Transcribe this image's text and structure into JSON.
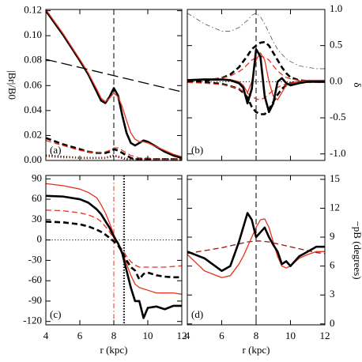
{
  "chart_data": [
    {
      "type": "line",
      "panel_label": "(a)",
      "ylabel": "|Br|/B0",
      "yaxis_side": "left",
      "xtick_labels": false,
      "xlim": [
        4,
        12
      ],
      "xticks": [
        4,
        6,
        8,
        10,
        12
      ],
      "ylim": [
        0,
        0.121
      ],
      "yticks": [
        {
          "value": 0,
          "label": "0.00"
        },
        {
          "value": 0.02,
          "label": "0.02"
        },
        {
          "value": 0.04,
          "label": "0.04"
        },
        {
          "value": 0.06,
          "label": "0.06"
        },
        {
          "value": 0.08,
          "label": "0.08"
        },
        {
          "value": 0.1,
          "label": "0.10"
        },
        {
          "value": 0.12,
          "label": "0.12"
        }
      ],
      "vlines": [
        {
          "x": 8,
          "color": "#000000",
          "style": "dashed"
        }
      ],
      "hlines": [],
      "x": [
        4,
        5,
        6,
        6.5,
        7,
        7.25,
        7.5,
        7.75,
        8,
        8.25,
        8.5,
        8.75,
        9,
        9.25,
        9.5,
        9.75,
        10,
        10.5,
        11,
        11.5,
        12
      ],
      "series": [
        {
          "color": "#000000",
          "style": "solid",
          "weight": "thick",
          "values": [
            0.12,
            0.101,
            0.08,
            0.069,
            0.055,
            0.048,
            0.046,
            0.051,
            0.058,
            0.052,
            0.036,
            0.022,
            0.014,
            0.012,
            0.014,
            0.016,
            0.015,
            0.011,
            0.007,
            0.004,
            0.002
          ]
        },
        {
          "color": "#e8321e",
          "style": "solid",
          "weight": "normal",
          "values": [
            0.121,
            0.102,
            0.081,
            0.07,
            0.057,
            0.05,
            0.047,
            0.05,
            0.054,
            0.051,
            0.043,
            0.032,
            0.022,
            0.017,
            0.015,
            0.015,
            0.014,
            0.011,
            0.008,
            0.005,
            0.003
          ]
        },
        {
          "color": "#000000",
          "style": "dashed",
          "weight": "thick",
          "values": [
            0.018,
            0.013,
            0.009,
            0.007,
            0.006,
            0.006,
            0.006,
            0.007,
            0.009,
            0.008,
            0.006,
            0.004,
            0.002,
            0.001,
            0.001,
            0.001,
            0.001,
            0.001,
            0.001,
            0.001,
            0.001
          ]
        },
        {
          "color": "#e8321e",
          "style": "dashed",
          "weight": "normal",
          "values": [
            0.016,
            0.012,
            0.008,
            0.007,
            0.006,
            0.006,
            0.007,
            0.008,
            0.01,
            0.01,
            0.008,
            0.006,
            0.004,
            0.003,
            0.002,
            0.002,
            0.002,
            0.001,
            0.001,
            0.001,
            0.001
          ]
        },
        {
          "color": "#000000",
          "style": "dotted",
          "weight": "thick",
          "values": [
            0.004,
            0.003,
            0.002,
            0.002,
            0.002,
            0.002,
            0.002,
            0.003,
            0.004,
            0.003,
            0.002,
            0.001,
            0.001,
            0.001,
            0.001,
            0.001,
            0.001,
            0.001,
            0.001,
            0.001,
            0.001
          ]
        },
        {
          "color": "#e8321e",
          "style": "dotted",
          "weight": "normal",
          "values": [
            0.003,
            0.002,
            0.002,
            0.002,
            0.002,
            0.002,
            0.002,
            0.002,
            0.003,
            0.003,
            0.002,
            0.002,
            0.001,
            0.001,
            0.001,
            0.001,
            0.001,
            0.001,
            0.001,
            0.001,
            0.001
          ]
        },
        {
          "color": "#000000",
          "style": "longdash",
          "weight": "normal",
          "x": [
            4,
            12
          ],
          "values": [
            0.081,
            0.055
          ]
        }
      ]
    },
    {
      "type": "line",
      "panel_label": "(b)",
      "ylabel": "δ",
      "yaxis_side": "right",
      "xtick_labels": false,
      "xlim": [
        4,
        12
      ],
      "xticks": [
        4,
        6,
        8,
        10,
        12
      ],
      "ylim": [
        -1.09,
        1.0
      ],
      "yticks": [
        {
          "value": -1,
          "label": "-1.0"
        },
        {
          "value": -0.5,
          "label": "-0.5"
        },
        {
          "value": 0,
          "label": "0.0"
        },
        {
          "value": 0.5,
          "label": "0.5"
        },
        {
          "value": 1,
          "label": "1.0"
        }
      ],
      "vlines": [
        {
          "x": 8,
          "color": "#000000",
          "style": "dashed"
        }
      ],
      "hlines": [
        {
          "y": 0,
          "color": "#000000",
          "style": "dotted"
        }
      ],
      "x": [
        4,
        5,
        6,
        6.5,
        7,
        7.25,
        7.5,
        7.75,
        8,
        8.25,
        8.5,
        8.75,
        9,
        9.25,
        9.5,
        9.75,
        10,
        10.5,
        11,
        11.5,
        12
      ],
      "series": [
        {
          "color": "#555555",
          "style": "dashdot",
          "weight": "thin",
          "values": [
            0.95,
            0.8,
            0.7,
            0.7,
            0.75,
            0.8,
            0.85,
            0.92,
            0.95,
            0.9,
            0.8,
            0.68,
            0.55,
            0.45,
            0.38,
            0.32,
            0.28,
            0.22,
            0.2,
            0.18,
            0.18
          ]
        },
        {
          "color": "#000000",
          "style": "dashed",
          "weight": "thick",
          "values": [
            0,
            0.01,
            0.05,
            0.1,
            0.2,
            0.28,
            0.36,
            0.45,
            0.5,
            0.54,
            0.55,
            0.5,
            0.4,
            0.3,
            0.2,
            0.12,
            0.06,
            0.02,
            0.01,
            0,
            0
          ]
        },
        {
          "color": "#000000",
          "style": "dashed",
          "weight": "thick",
          "values": [
            0,
            -0.01,
            -0.03,
            -0.06,
            -0.1,
            -0.15,
            -0.22,
            -0.35,
            -0.42,
            -0.45,
            -0.45,
            -0.38,
            -0.28,
            -0.18,
            -0.1,
            -0.05,
            -0.02,
            0,
            0,
            0,
            0
          ]
        },
        {
          "color": "#e8321e",
          "style": "dashed",
          "weight": "normal",
          "values": [
            0.02,
            0.03,
            0.05,
            0.08,
            0.14,
            0.18,
            0.24,
            0.3,
            0.33,
            0.35,
            0.34,
            0.3,
            0.22,
            0.15,
            0.1,
            0.06,
            0.04,
            0.02,
            0.01,
            0.01,
            0.01
          ]
        },
        {
          "color": "#e8321e",
          "style": "dashed",
          "weight": "normal",
          "values": [
            -0.01,
            -0.02,
            -0.04,
            -0.06,
            -0.1,
            -0.13,
            -0.16,
            -0.2,
            -0.24,
            -0.25,
            -0.22,
            -0.17,
            -0.12,
            -0.08,
            -0.05,
            -0.03,
            -0.02,
            -0.01,
            0,
            0,
            0
          ]
        },
        {
          "color": "#e8321e",
          "style": "solid",
          "weight": "normal",
          "values": [
            0.03,
            0.04,
            0.04,
            0.03,
            0,
            -0.05,
            -0.15,
            0,
            0.3,
            0.4,
            0.3,
            0,
            -0.2,
            -0.25,
            -0.15,
            -0.05,
            -0.02,
            0,
            0.02,
            0.02,
            0.02
          ]
        },
        {
          "color": "#000000",
          "style": "solid",
          "weight": "thick",
          "values": [
            0.02,
            0.03,
            0.03,
            0.02,
            -0.02,
            -0.08,
            -0.3,
            -0.1,
            0.45,
            0.35,
            -0.2,
            -0.42,
            -0.3,
            0,
            0.05,
            -0.02,
            -0.05,
            -0.02,
            0,
            0,
            0
          ]
        }
      ]
    },
    {
      "type": "line",
      "panel_label": "(c)",
      "xlabel": "r (kpc)",
      "yaxis_side": "left",
      "xtick_labels": true,
      "xlim": [
        4,
        12
      ],
      "xticks": [
        4,
        6,
        8,
        10,
        12
      ],
      "ylim": [
        -125,
        95
      ],
      "yticks": [
        -120,
        -90,
        -60,
        -30,
        0,
        30,
        60,
        90
      ],
      "vlines": [
        {
          "x": 8,
          "color": "#e8321e",
          "style": "dashdot"
        },
        {
          "x": 8.6,
          "color": "#000000",
          "style": "dottedthick"
        }
      ],
      "hlines": [
        {
          "y": 0,
          "color": "#000000",
          "style": "dotted"
        }
      ],
      "x": [
        4,
        5,
        6,
        6.5,
        7,
        7.25,
        7.5,
        7.75,
        8,
        8.25,
        8.5,
        8.75,
        9,
        9.25,
        9.5,
        9.75,
        10,
        10.5,
        11,
        11.5,
        12
      ],
      "series": [
        {
          "color": "#e8321e",
          "style": "solid",
          "weight": "normal",
          "values": [
            83,
            80,
            75,
            70,
            62,
            52,
            40,
            25,
            8,
            -5,
            -18,
            -35,
            -52,
            -65,
            -70,
            -72,
            -74,
            -78,
            -78,
            -78,
            -80
          ]
        },
        {
          "color": "#e8321e",
          "style": "dashed",
          "weight": "normal",
          "values": [
            44,
            43,
            40,
            37,
            32,
            27,
            20,
            12,
            2,
            -6,
            -14,
            -24,
            -32,
            -37,
            -40,
            -40,
            -40,
            -40,
            -40,
            -39,
            -38
          ]
        },
        {
          "color": "#000000",
          "style": "dashed",
          "weight": "thick",
          "values": [
            27,
            26,
            23,
            20,
            15,
            12,
            8,
            3,
            -2,
            -8,
            -18,
            -30,
            -40,
            -45,
            -58,
            -50,
            -48,
            -52,
            -54,
            -55,
            -55
          ]
        },
        {
          "color": "#000000",
          "style": "solid",
          "weight": "thick",
          "values": [
            65,
            64,
            60,
            55,
            45,
            38,
            28,
            18,
            5,
            -5,
            -20,
            -45,
            -70,
            -90,
            -90,
            -115,
            -100,
            -98,
            -102,
            -97,
            -97
          ]
        }
      ]
    },
    {
      "type": "line",
      "panel_label": "(d)",
      "xlabel": "r (kpc)",
      "ylabel": "−pB (degrees)",
      "yaxis_side": "right",
      "xtick_labels": true,
      "xlim": [
        4,
        12
      ],
      "xticks": [
        4,
        6,
        8,
        10,
        12
      ],
      "ylim": [
        -0.1,
        15.4
      ],
      "yticks": [
        0,
        3,
        6,
        9,
        12,
        15
      ],
      "vlines": [
        {
          "x": 8,
          "color": "#000000",
          "style": "dashed"
        }
      ],
      "hlines": [],
      "x": [
        4,
        5,
        6,
        6.5,
        7,
        7.25,
        7.5,
        7.75,
        8,
        8.25,
        8.5,
        8.75,
        9,
        9.25,
        9.5,
        9.75,
        10,
        10.5,
        11,
        11.5,
        12
      ],
      "series": [
        {
          "color": "#8b1a1a",
          "style": "dashed",
          "weight": "normal",
          "values": [
            7.3,
            7.6,
            7.9,
            8.1,
            8.3,
            8.4,
            8.5,
            8.55,
            8.6,
            8.6,
            8.55,
            8.5,
            8.4,
            8.3,
            8.2,
            8.1,
            8,
            7.8,
            7.6,
            7.4,
            7.3
          ]
        },
        {
          "color": "#e8321e",
          "style": "solid",
          "weight": "normal",
          "values": [
            7.2,
            5.5,
            4.8,
            5,
            6.2,
            7,
            8,
            9,
            10,
            10.8,
            10.9,
            10,
            8.5,
            7,
            6,
            5.8,
            6,
            6.8,
            7.2,
            7.5,
            7.5
          ]
        },
        {
          "color": "#000000",
          "style": "solid",
          "weight": "thick",
          "values": [
            7.5,
            6.8,
            5.5,
            6,
            8.5,
            10,
            11.5,
            10.8,
            9,
            9.5,
            10,
            9,
            8.2,
            7.5,
            6.2,
            6.5,
            6,
            7,
            7.5,
            8,
            8
          ]
        }
      ]
    }
  ]
}
